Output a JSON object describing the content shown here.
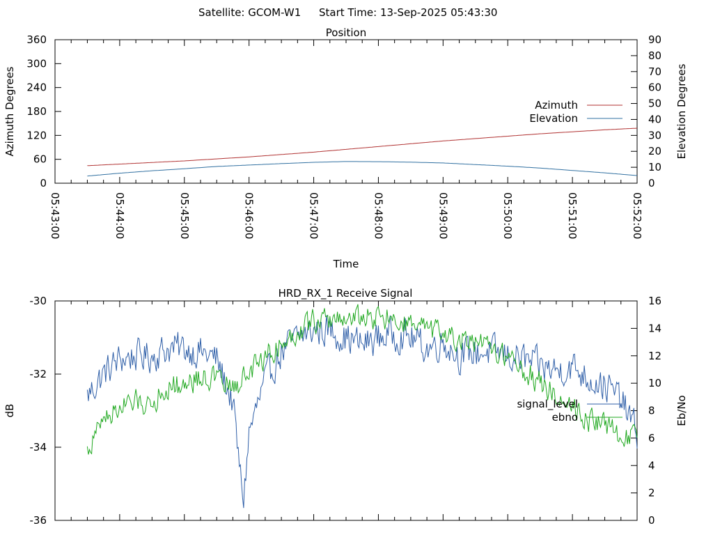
{
  "header": {
    "satellite_text": "Satellite: GCOM-W1",
    "start_time_text": "Start Time: 13-Sep-2025 05:43:30"
  },
  "chart_data": [
    {
      "type": "line",
      "title": "Position",
      "xlabel": "Time",
      "ylabel": "Azimuth Degrees",
      "y2label": "Elevation Degrees",
      "x_tick_labels": [
        "05:43:00",
        "05:44:00",
        "05:45:00",
        "05:46:00",
        "05:47:00",
        "05:48:00",
        "05:49:00",
        "05:50:00",
        "05:51:00",
        "05:52:00"
      ],
      "xlim": [
        "05:43:00",
        "05:52:00"
      ],
      "ylim": [
        0,
        360
      ],
      "y_ticks": [
        0,
        60,
        120,
        180,
        240,
        300,
        360
      ],
      "y2lim": [
        0,
        90
      ],
      "y2_ticks": [
        0,
        10,
        20,
        30,
        40,
        50,
        60,
        70,
        80,
        90
      ],
      "grid": false,
      "legend_position": "right",
      "series": [
        {
          "name": "Azimuth",
          "axis": "y",
          "color": "#b03030",
          "x": [
            "05:43:30",
            "05:44:00",
            "05:44:30",
            "05:45:00",
            "05:45:30",
            "05:46:00",
            "05:46:30",
            "05:47:00",
            "05:47:30",
            "05:48:00",
            "05:48:30",
            "05:49:00",
            "05:49:30",
            "05:50:00",
            "05:50:30",
            "05:51:00",
            "05:51:30",
            "05:52:00"
          ],
          "values": [
            44,
            48,
            52,
            56,
            61,
            66,
            72,
            78,
            85,
            92,
            99,
            106,
            112,
            118,
            124,
            129,
            134,
            138
          ]
        },
        {
          "name": "Elevation",
          "axis": "y2",
          "color": "#2f6fa0",
          "x": [
            "05:43:30",
            "05:44:00",
            "05:44:30",
            "05:45:00",
            "05:45:30",
            "05:46:00",
            "05:46:30",
            "05:47:00",
            "05:47:30",
            "05:48:00",
            "05:48:30",
            "05:49:00",
            "05:49:30",
            "05:50:00",
            "05:50:30",
            "05:51:00",
            "05:51:30",
            "05:52:00"
          ],
          "values": [
            4.5,
            6.3,
            7.8,
            9.1,
            10.5,
            11.4,
            12.3,
            13.1,
            13.6,
            13.5,
            13.2,
            12.7,
            11.7,
            10.7,
            9.5,
            8.0,
            6.5,
            4.8
          ]
        }
      ]
    },
    {
      "type": "line",
      "title": "HRD_RX_1 Receive Signal",
      "ylabel": "dB",
      "y2label": "Eb/No",
      "xlim": [
        "05:43:00",
        "05:52:00"
      ],
      "ylim": [
        -36,
        -30
      ],
      "y_ticks": [
        -36,
        -34,
        -32,
        -30
      ],
      "y2lim": [
        0,
        16
      ],
      "y2_ticks": [
        0,
        2,
        4,
        6,
        8,
        10,
        12,
        14,
        16
      ],
      "grid": false,
      "legend_position": "right",
      "series": [
        {
          "name": "signal_level",
          "axis": "y",
          "color": "#2f5fa8",
          "x": [
            "05:43:30",
            "05:43:45",
            "05:44:00",
            "05:44:15",
            "05:44:30",
            "05:44:45",
            "05:45:00",
            "05:45:15",
            "05:45:30",
            "05:45:45",
            "05:45:52",
            "05:45:55",
            "05:46:00",
            "05:46:15",
            "05:46:30",
            "05:46:45",
            "05:47:00",
            "05:47:15",
            "05:47:30",
            "05:47:45",
            "05:48:00",
            "05:48:15",
            "05:48:30",
            "05:48:45",
            "05:49:00",
            "05:49:15",
            "05:49:30",
            "05:49:45",
            "05:50:00",
            "05:50:15",
            "05:50:30",
            "05:50:45",
            "05:51:00",
            "05:51:15",
            "05:51:30",
            "05:51:45",
            "05:52:00"
          ],
          "values": [
            -32.6,
            -32.0,
            -31.6,
            -31.5,
            -31.5,
            -31.3,
            -31.3,
            -31.4,
            -31.6,
            -32.8,
            -34.8,
            -35.4,
            -33.6,
            -32.2,
            -31.4,
            -31.0,
            -30.8,
            -30.8,
            -31.0,
            -31.2,
            -31.0,
            -30.9,
            -31.0,
            -31.3,
            -31.1,
            -31.5,
            -31.4,
            -31.4,
            -31.5,
            -31.6,
            -31.8,
            -31.9,
            -31.8,
            -32.1,
            -32.3,
            -32.7,
            -33.6
          ]
        },
        {
          "name": "ebno",
          "axis": "y2",
          "color": "#1fa81f",
          "x": [
            "05:43:30",
            "05:43:45",
            "05:44:00",
            "05:44:15",
            "05:44:30",
            "05:44:45",
            "05:45:00",
            "05:45:15",
            "05:45:30",
            "05:45:45",
            "05:46:00",
            "05:46:15",
            "05:46:30",
            "05:46:45",
            "05:47:00",
            "05:47:15",
            "05:47:30",
            "05:47:45",
            "05:48:00",
            "05:48:15",
            "05:48:30",
            "05:48:45",
            "05:49:00",
            "05:49:15",
            "05:49:30",
            "05:49:45",
            "05:50:00",
            "05:50:15",
            "05:50:30",
            "05:50:45",
            "05:51:00",
            "05:51:15",
            "05:51:30",
            "05:51:45",
            "05:52:00"
          ],
          "values": [
            5.0,
            7.5,
            8.2,
            8.6,
            8.6,
            9.8,
            9.9,
            10.5,
            10.3,
            9.6,
            10.8,
            12.0,
            12.8,
            13.8,
            14.6,
            14.6,
            14.8,
            14.8,
            14.8,
            14.5,
            14.2,
            13.9,
            13.5,
            13.2,
            12.8,
            12.5,
            12.0,
            11.0,
            10.0,
            9.2,
            8.4,
            7.4,
            6.9,
            6.3,
            6.0
          ]
        }
      ]
    }
  ]
}
